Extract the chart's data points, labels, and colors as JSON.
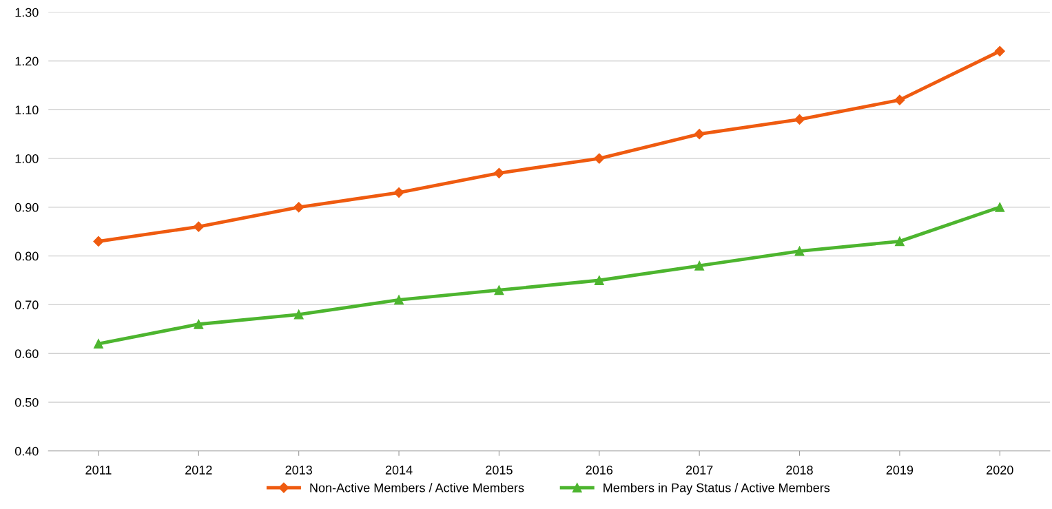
{
  "chart_data": {
    "type": "line",
    "categories": [
      "2011",
      "2012",
      "2013",
      "2014",
      "2015",
      "2016",
      "2017",
      "2018",
      "2019",
      "2020"
    ],
    "series": [
      {
        "name": "Non-Active Members / Active Members",
        "color": "#ef5b10",
        "marker": "diamond",
        "values": [
          0.83,
          0.86,
          0.9,
          0.93,
          0.97,
          1.0,
          1.05,
          1.08,
          1.12,
          1.22
        ]
      },
      {
        "name": "Members in Pay Status / Active Members",
        "color": "#4db52f",
        "marker": "triangle",
        "values": [
          0.62,
          0.66,
          0.68,
          0.71,
          0.73,
          0.75,
          0.78,
          0.81,
          0.83,
          0.9
        ]
      }
    ],
    "ylim": [
      0.4,
      1.3
    ],
    "yticks": [
      {
        "value": 0.4,
        "label": "0.40"
      },
      {
        "value": 0.5,
        "label": "0.50"
      },
      {
        "value": 0.6,
        "label": "0.60"
      },
      {
        "value": 0.7,
        "label": "0.70"
      },
      {
        "value": 0.8,
        "label": "0.80"
      },
      {
        "value": 0.9,
        "label": "0.90"
      },
      {
        "value": 1.0,
        "label": "1.00"
      },
      {
        "value": 1.1,
        "label": "1.10"
      },
      {
        "value": 1.2,
        "label": "1.20"
      },
      {
        "value": 1.3,
        "label": "1.30"
      }
    ],
    "grid": "y",
    "legend": "bottom",
    "line_style": "solid"
  }
}
